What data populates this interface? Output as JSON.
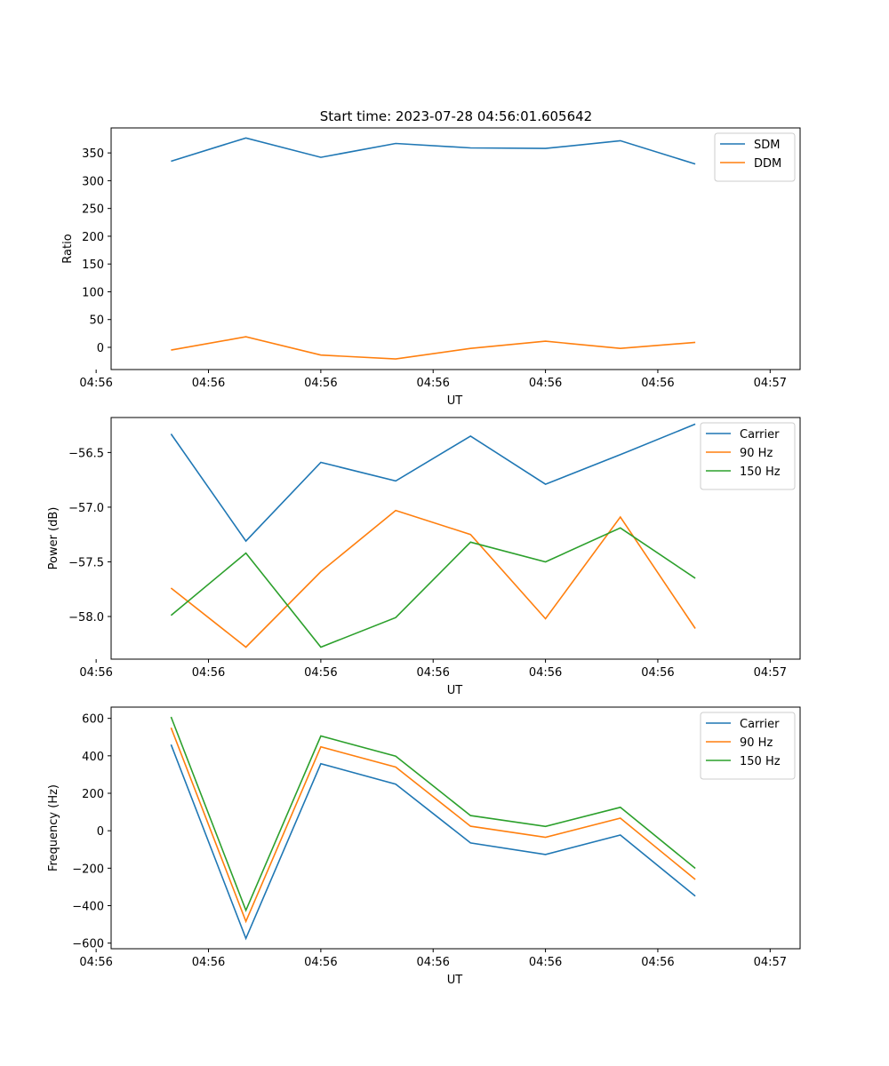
{
  "figure_title": "Start time: 2023-07-28 04:56:01.605642",
  "chart_data": [
    {
      "type": "line",
      "title": "Start time: 2023-07-28 04:56:01.605642",
      "xlabel": "UT",
      "ylabel": "Ratio",
      "x": [
        1,
        2,
        3,
        4,
        5,
        6,
        7,
        8
      ],
      "xlim": [
        0.2,
        9.4
      ],
      "x_ticks": [
        0,
        1.5,
        3,
        4.5,
        6,
        7.5,
        9
      ],
      "x_tick_labels": [
        "04:56",
        "04:56",
        "04:56",
        "04:56",
        "04:56",
        "04:56",
        "04:57"
      ],
      "ylim": [
        -40,
        395
      ],
      "y_ticks": [
        0,
        50,
        100,
        150,
        200,
        250,
        300,
        350
      ],
      "y_tick_labels": [
        "0",
        "50",
        "100",
        "150",
        "200",
        "250",
        "300",
        "350"
      ],
      "legend": "top-right",
      "series": [
        {
          "name": "SDM",
          "color": "#1f77b4",
          "values": [
            335,
            377,
            342,
            367,
            359,
            358,
            372,
            330
          ]
        },
        {
          "name": "DDM",
          "color": "#ff7f0e",
          "values": [
            -5,
            19,
            -14,
            -21,
            -2,
            11,
            -2,
            9
          ]
        }
      ]
    },
    {
      "type": "line",
      "xlabel": "UT",
      "ylabel": "Power (dB)",
      "x": [
        1,
        2,
        3,
        4,
        5,
        6,
        7,
        8
      ],
      "xlim": [
        0.2,
        9.4
      ],
      "x_ticks": [
        0,
        1.5,
        3,
        4.5,
        6,
        7.5,
        9
      ],
      "x_tick_labels": [
        "04:56",
        "04:56",
        "04:56",
        "04:56",
        "04:56",
        "04:56",
        "04:57"
      ],
      "ylim": [
        -58.39,
        -56.18
      ],
      "y_ticks": [
        -58.0,
        -57.5,
        -57.0,
        -56.5
      ],
      "y_tick_labels": [
        "−58.0",
        "−57.5",
        "−57.0",
        "−56.5"
      ],
      "legend": "top-right",
      "series": [
        {
          "name": "Carrier",
          "color": "#1f77b4",
          "values": [
            -56.33,
            -57.31,
            -56.59,
            -56.76,
            -56.35,
            -56.79,
            -56.52,
            -56.24
          ]
        },
        {
          "name": "90 Hz",
          "color": "#ff7f0e",
          "values": [
            -57.74,
            -58.28,
            -57.59,
            -57.03,
            -57.25,
            -58.02,
            -57.09,
            -58.11
          ]
        },
        {
          "name": "150 Hz",
          "color": "#2ca02c",
          "values": [
            -57.99,
            -57.42,
            -58.28,
            -58.01,
            -57.32,
            -57.5,
            -57.19,
            -57.65
          ]
        }
      ]
    },
    {
      "type": "line",
      "xlabel": "UT",
      "ylabel": "Frequency (Hz)",
      "x": [
        1,
        2,
        3,
        4,
        5,
        6,
        7,
        8
      ],
      "xlim": [
        0.2,
        9.4
      ],
      "x_ticks": [
        0,
        1.5,
        3,
        4.5,
        6,
        7.5,
        9
      ],
      "x_tick_labels": [
        "04:56",
        "04:56",
        "04:56",
        "04:56",
        "04:56",
        "04:56",
        "04:57"
      ],
      "ylim": [
        -630,
        660
      ],
      "y_ticks": [
        -600,
        -400,
        -200,
        0,
        200,
        400,
        600
      ],
      "y_tick_labels": [
        "−600",
        "−400",
        "−200",
        "0",
        "200",
        "400",
        "600"
      ],
      "legend": "top-right",
      "series": [
        {
          "name": "Carrier",
          "color": "#1f77b4",
          "values": [
            460,
            -575,
            358,
            249,
            -65,
            -127,
            -23,
            -349
          ]
        },
        {
          "name": "90 Hz",
          "color": "#ff7f0e",
          "values": [
            550,
            -484,
            448,
            340,
            24,
            -35,
            67,
            -260
          ]
        },
        {
          "name": "150 Hz",
          "color": "#2ca02c",
          "values": [
            608,
            -425,
            506,
            398,
            81,
            23,
            125,
            -201
          ]
        }
      ]
    }
  ]
}
